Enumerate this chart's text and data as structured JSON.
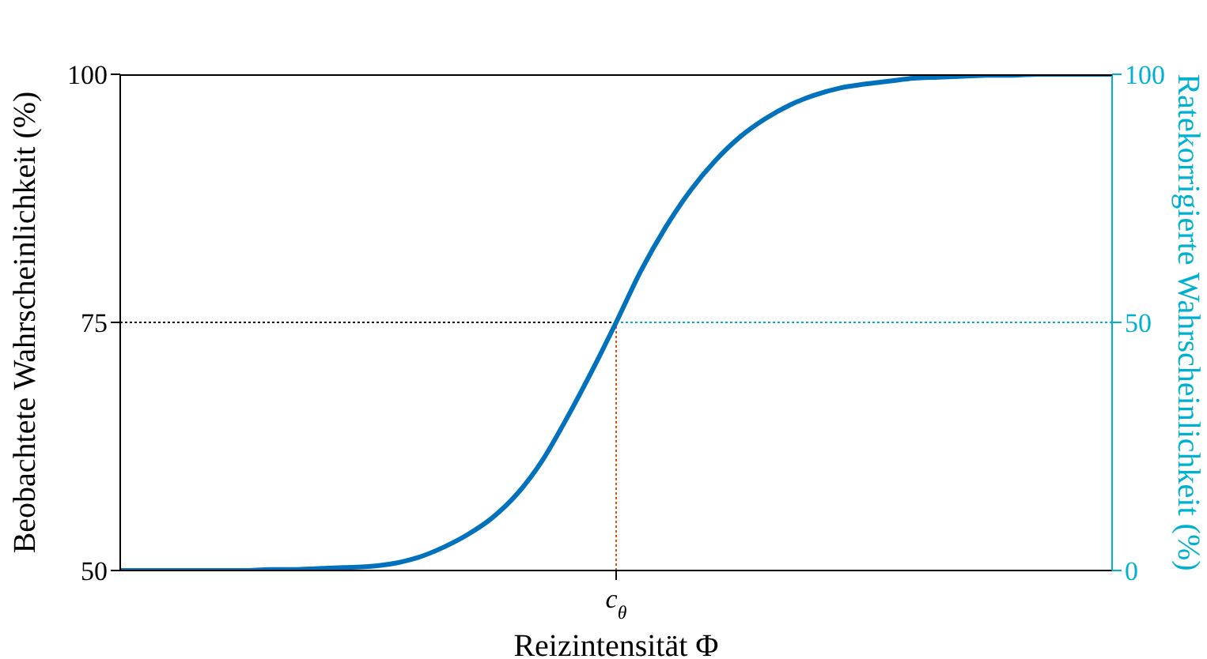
{
  "chart_data": {
    "type": "line",
    "xlabel": "Reizintensität Φ",
    "ylabel": "Beobachtete Wahrscheinlichkeit (%)",
    "y2label": "Ratekorrigierte Wahrscheinlichkeit (%)",
    "categories": [
      null,
      null,
      null,
      null,
      null,
      null,
      null,
      null,
      null,
      null,
      null,
      null,
      null,
      null,
      null,
      null,
      null,
      null,
      null,
      null,
      "c$_{θ}$",
      null,
      null,
      null,
      null,
      null,
      null,
      null,
      null,
      null,
      null,
      null,
      null,
      null,
      null,
      null,
      null,
      null,
      null,
      null,
      null
    ],
    "series": [
      {
        "color": "#0072bd",
        "values": [
          50,
          50,
          50,
          50,
          50,
          50,
          50.1,
          50.1,
          50.2,
          50.3,
          50.4,
          50.7,
          51.3,
          52.3,
          53.6,
          55.3,
          57.7,
          61,
          65.3,
          70,
          75,
          80.2,
          84.6,
          88.3,
          91.3,
          93.7,
          95.5,
          96.9,
          97.9,
          98.6,
          99,
          99.3,
          99.6,
          99.7,
          99.8,
          99.9,
          99.9,
          100,
          100,
          100,
          100
        ]
      }
    ],
    "ylim": [
      50,
      100
    ],
    "yticks": [
      50,
      75,
      100
    ],
    "y2lim": [
      0,
      100
    ],
    "y2ticks": [
      0,
      50,
      100
    ],
    "ref_lines": [
      {
        "axis": "y",
        "value": 75,
        "color": "#000000",
        "line_style": "dotted"
      },
      {
        "axis": "y2",
        "value": 50,
        "color": "#00b0d0",
        "line_style": "dotted"
      },
      {
        "axis": "x",
        "value": "c$_{θ}$",
        "color": "#d95319",
        "line_style": "dotted"
      }
    ],
    "grid": false,
    "legend": false,
    "marker": "none",
    "line_style": "solid"
  }
}
